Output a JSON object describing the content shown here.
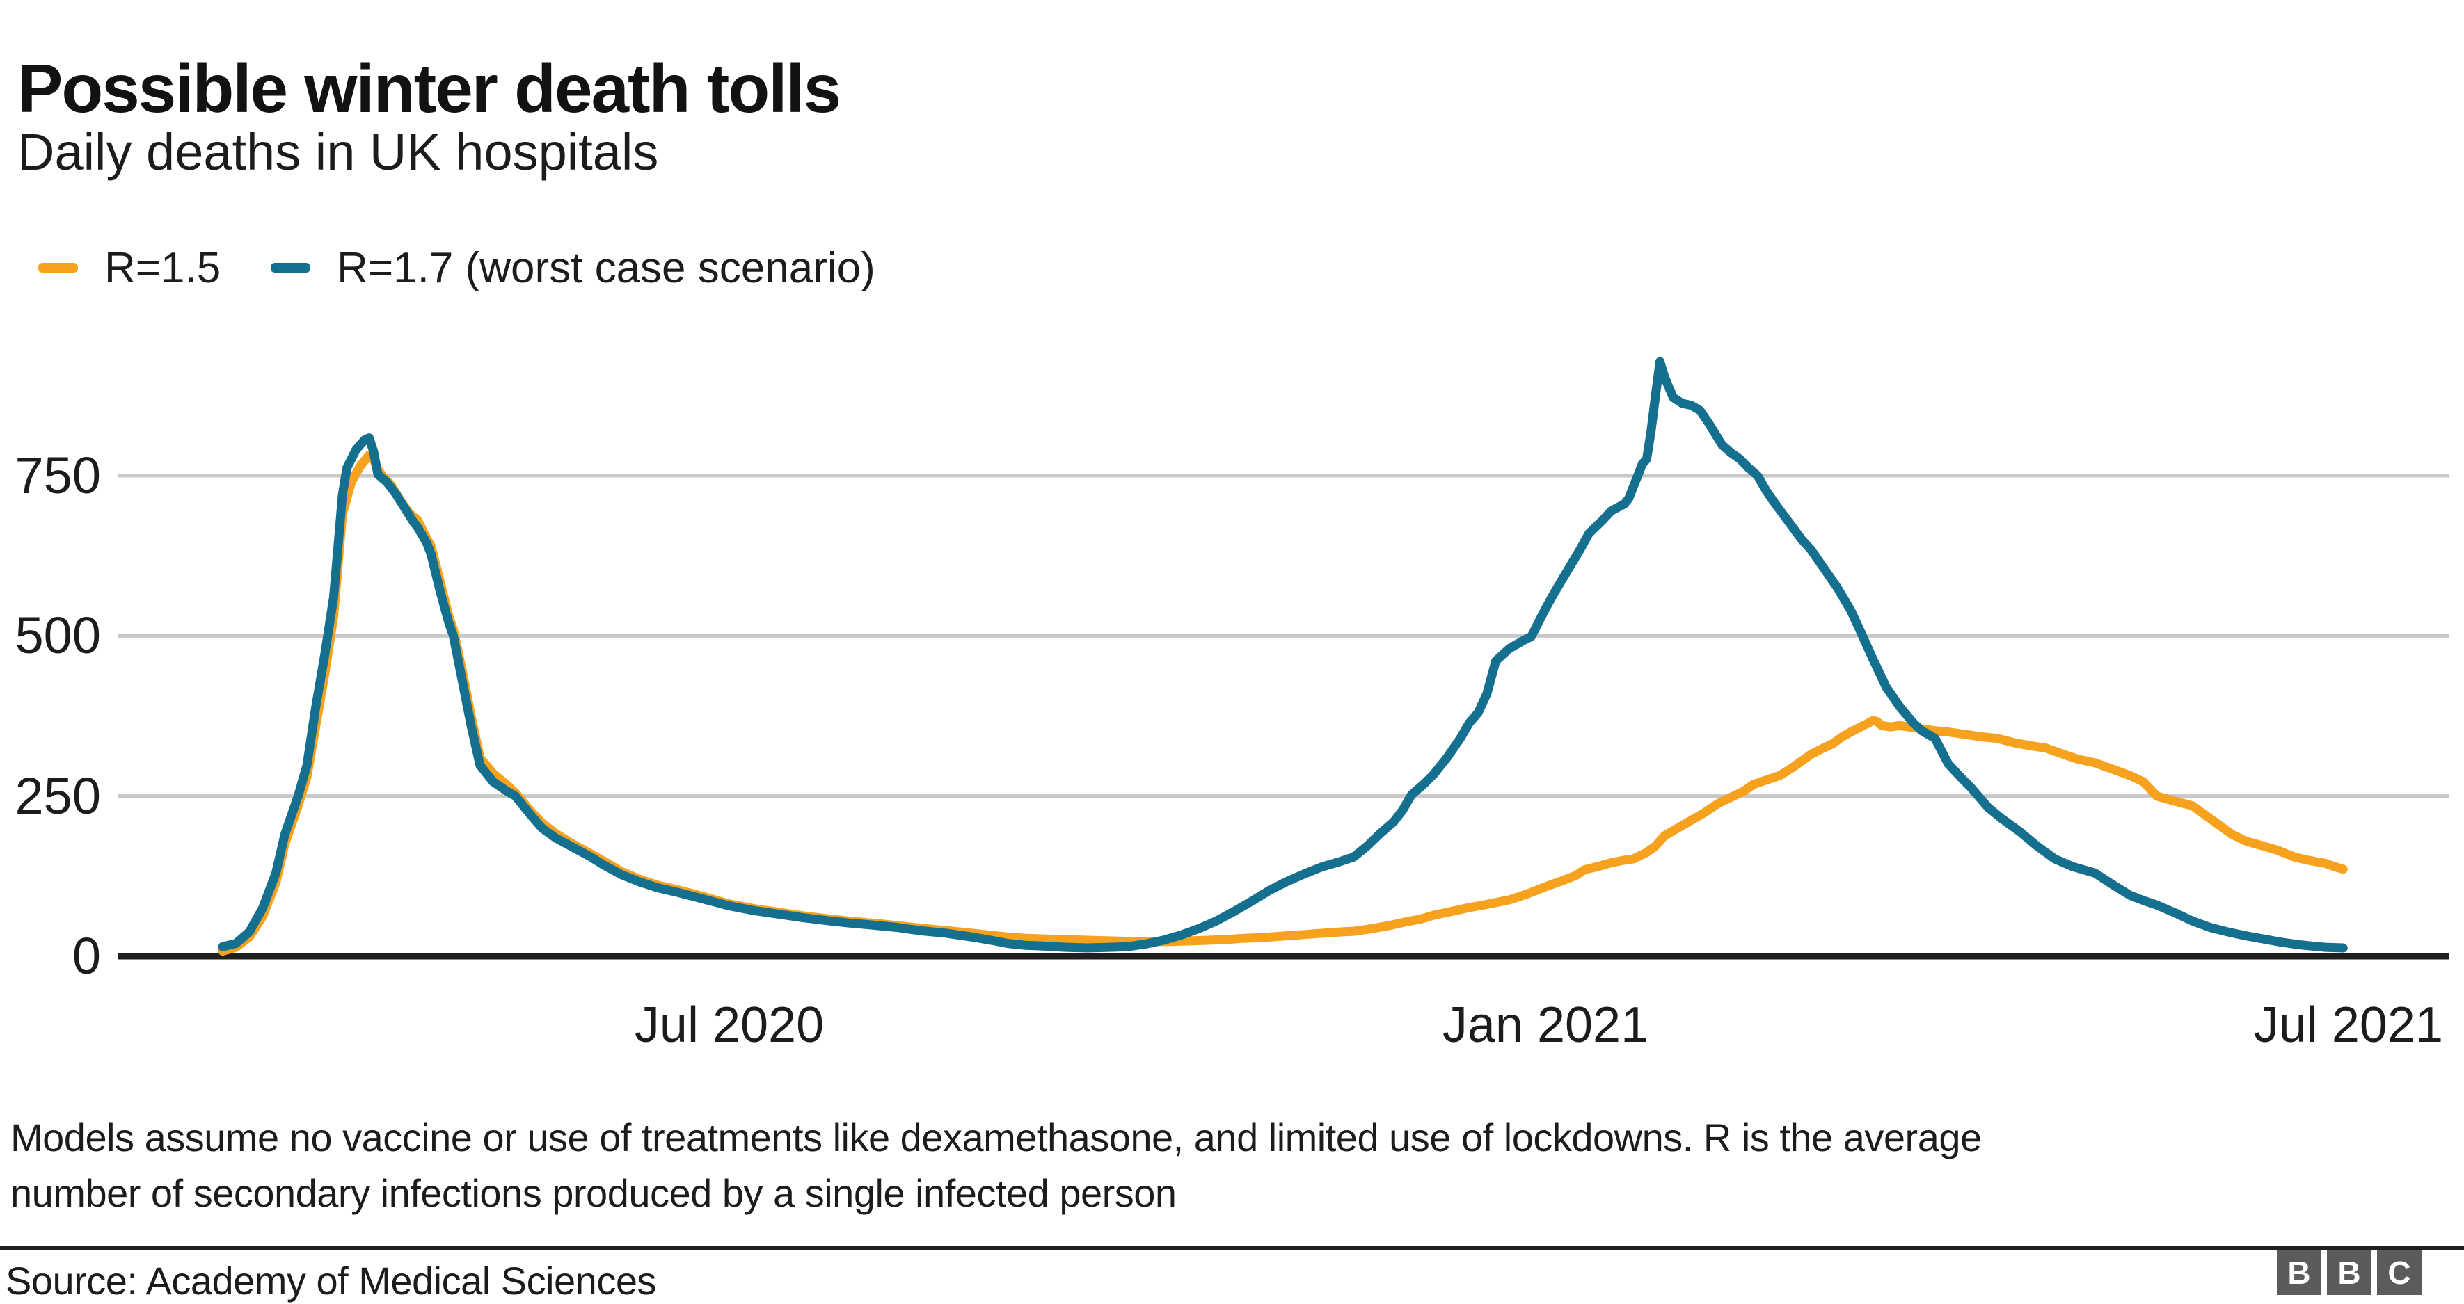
{
  "header": {
    "title": "Possible winter death tolls",
    "subtitle": "Daily deaths in UK hospitals"
  },
  "legend": {
    "items": [
      {
        "label": "R=1.5",
        "color": "#F7A21E"
      },
      {
        "label": "R=1.7 (worst case scenario)",
        "color": "#15708F"
      }
    ]
  },
  "theme": {
    "orange": "#F7A21E",
    "blue": "#15708F",
    "grid_color": "#C8C8C8",
    "axis_color": "#1F1F1F",
    "logo_block_color": "#5B5B5E",
    "text_color": "#1C1C1C"
  },
  "chart_data": {
    "type": "line",
    "title": "Possible winter death tolls",
    "subtitle": "Daily deaths in UK hospitals",
    "xlabel": "",
    "ylabel": "",
    "grid": "horizontal gridlines only",
    "legend_position": "top-left",
    "x_unit": "days (day 0 = start of data, early March 2020)",
    "xlim_days": [
      0,
      478
    ],
    "ylim": [
      0,
      960
    ],
    "y_ticks": [
      0,
      250,
      500,
      750
    ],
    "x_ticks": [
      {
        "label": "Jul 2020",
        "day": 114.2
      },
      {
        "label": "Jan 2021",
        "day": 298.2
      },
      {
        "label": "Jul 2021",
        "day": 479.2
      }
    ],
    "series": [
      {
        "name": "R=1.5",
        "color": "#F7A21E",
        "points": [
          [
            0,
            8
          ],
          [
            3,
            14
          ],
          [
            6,
            30
          ],
          [
            9,
            62
          ],
          [
            12,
            115
          ],
          [
            14,
            175
          ],
          [
            17,
            235
          ],
          [
            19,
            280
          ],
          [
            21,
            360
          ],
          [
            23,
            440
          ],
          [
            25,
            530
          ],
          [
            26,
            610
          ],
          [
            27,
            690
          ],
          [
            29,
            740
          ],
          [
            31,
            765
          ],
          [
            33,
            782
          ],
          [
            34,
            775
          ],
          [
            35,
            760
          ],
          [
            36,
            750
          ],
          [
            38,
            735
          ],
          [
            40,
            712
          ],
          [
            42,
            692
          ],
          [
            44,
            680
          ],
          [
            46,
            652
          ],
          [
            47,
            640
          ],
          [
            49,
            585
          ],
          [
            51,
            530
          ],
          [
            52,
            510
          ],
          [
            54,
            445
          ],
          [
            56,
            375
          ],
          [
            58,
            310
          ],
          [
            61,
            285
          ],
          [
            64,
            268
          ],
          [
            66,
            255
          ],
          [
            69,
            230
          ],
          [
            72,
            208
          ],
          [
            75,
            192
          ],
          [
            79,
            175
          ],
          [
            83,
            160
          ],
          [
            86,
            148
          ],
          [
            90,
            132
          ],
          [
            94,
            120
          ],
          [
            98,
            111
          ],
          [
            103,
            103
          ],
          [
            108,
            94
          ],
          [
            114,
            82
          ],
          [
            120,
            74
          ],
          [
            126,
            68
          ],
          [
            131,
            63
          ],
          [
            137,
            58
          ],
          [
            141,
            55
          ],
          [
            146,
            52
          ],
          [
            152,
            48
          ],
          [
            157,
            44
          ],
          [
            163,
            40
          ],
          [
            169,
            36
          ],
          [
            174,
            32
          ],
          [
            177,
            30
          ],
          [
            181,
            28
          ],
          [
            185,
            27
          ],
          [
            190,
            26
          ],
          [
            195,
            25
          ],
          [
            200,
            24
          ],
          [
            205,
            23
          ],
          [
            210,
            23
          ],
          [
            214,
            23
          ],
          [
            218,
            24
          ],
          [
            222,
            25
          ],
          [
            226,
            26
          ],
          [
            230,
            28
          ],
          [
            234,
            29
          ],
          [
            236,
            30
          ],
          [
            240,
            32
          ],
          [
            244,
            34
          ],
          [
            248,
            36
          ],
          [
            252,
            38
          ],
          [
            255,
            39
          ],
          [
            259,
            43
          ],
          [
            263,
            48
          ],
          [
            267,
            54
          ],
          [
            270,
            58
          ],
          [
            273,
            64
          ],
          [
            277,
            70
          ],
          [
            281,
            76
          ],
          [
            285,
            81
          ],
          [
            290,
            88
          ],
          [
            294,
            97
          ],
          [
            298,
            108
          ],
          [
            302,
            118
          ],
          [
            305,
            126
          ],
          [
            307,
            135
          ],
          [
            310,
            140
          ],
          [
            313,
            146
          ],
          [
            316,
            150
          ],
          [
            318,
            152
          ],
          [
            321,
            162
          ],
          [
            323,
            172
          ],
          [
            325,
            188
          ],
          [
            328,
            200
          ],
          [
            331,
            212
          ],
          [
            334,
            224
          ],
          [
            337,
            238
          ],
          [
            340,
            248
          ],
          [
            343,
            258
          ],
          [
            345,
            268
          ],
          [
            348,
            275
          ],
          [
            351,
            282
          ],
          [
            354,
            295
          ],
          [
            356,
            305
          ],
          [
            358,
            315
          ],
          [
            360,
            322
          ],
          [
            363,
            332
          ],
          [
            365,
            342
          ],
          [
            367,
            350
          ],
          [
            369,
            357
          ],
          [
            371,
            364
          ],
          [
            372,
            368
          ],
          [
            373,
            366
          ],
          [
            374,
            360
          ],
          [
            376,
            358
          ],
          [
            378,
            360
          ],
          [
            380,
            358
          ],
          [
            383,
            355
          ],
          [
            386,
            352
          ],
          [
            389,
            350
          ],
          [
            393,
            346
          ],
          [
            397,
            342
          ],
          [
            400,
            340
          ],
          [
            404,
            333
          ],
          [
            408,
            328
          ],
          [
            411,
            325
          ],
          [
            415,
            315
          ],
          [
            418,
            308
          ],
          [
            422,
            302
          ],
          [
            426,
            292
          ],
          [
            430,
            282
          ],
          [
            433,
            272
          ],
          [
            436,
            250
          ],
          [
            440,
            242
          ],
          [
            444,
            235
          ],
          [
            448,
            215
          ],
          [
            451,
            200
          ],
          [
            453,
            190
          ],
          [
            456,
            180
          ],
          [
            460,
            172
          ],
          [
            463,
            166
          ],
          [
            467,
            155
          ],
          [
            470,
            150
          ],
          [
            474,
            145
          ],
          [
            476,
            140
          ],
          [
            478,
            136
          ]
        ]
      },
      {
        "name": "R=1.7 (worst case scenario)",
        "color": "#15708F",
        "points": [
          [
            0,
            15
          ],
          [
            3,
            20
          ],
          [
            6,
            38
          ],
          [
            9,
            75
          ],
          [
            12,
            130
          ],
          [
            14,
            190
          ],
          [
            17,
            250
          ],
          [
            19,
            298
          ],
          [
            21,
            390
          ],
          [
            23,
            470
          ],
          [
            25,
            560
          ],
          [
            26,
            640
          ],
          [
            27,
            720
          ],
          [
            28,
            762
          ],
          [
            30,
            790
          ],
          [
            32,
            806
          ],
          [
            33,
            809
          ],
          [
            34,
            788
          ],
          [
            35,
            752
          ],
          [
            37,
            740
          ],
          [
            39,
            722
          ],
          [
            41,
            700
          ],
          [
            43,
            678
          ],
          [
            44,
            669
          ],
          [
            46,
            645
          ],
          [
            47,
            627
          ],
          [
            49,
            570
          ],
          [
            51,
            520
          ],
          [
            52,
            500
          ],
          [
            54,
            430
          ],
          [
            56,
            360
          ],
          [
            58,
            298
          ],
          [
            61,
            272
          ],
          [
            64,
            258
          ],
          [
            66,
            250
          ],
          [
            69,
            224
          ],
          [
            72,
            200
          ],
          [
            75,
            185
          ],
          [
            79,
            170
          ],
          [
            83,
            155
          ],
          [
            86,
            142
          ],
          [
            90,
            127
          ],
          [
            94,
            116
          ],
          [
            98,
            107
          ],
          [
            103,
            99
          ],
          [
            108,
            90
          ],
          [
            114,
            79
          ],
          [
            120,
            71
          ],
          [
            126,
            65
          ],
          [
            131,
            60
          ],
          [
            137,
            55
          ],
          [
            141,
            52
          ],
          [
            146,
            49
          ],
          [
            152,
            45
          ],
          [
            157,
            40
          ],
          [
            163,
            36
          ],
          [
            169,
            30
          ],
          [
            174,
            24
          ],
          [
            177,
            20
          ],
          [
            181,
            17
          ],
          [
            185,
            16
          ],
          [
            190,
            14
          ],
          [
            195,
            13
          ],
          [
            200,
            14
          ],
          [
            204,
            15
          ],
          [
            208,
            19
          ],
          [
            212,
            25
          ],
          [
            216,
            33
          ],
          [
            220,
            43
          ],
          [
            224,
            55
          ],
          [
            228,
            70
          ],
          [
            232,
            86
          ],
          [
            236,
            103
          ],
          [
            240,
            117
          ],
          [
            244,
            129
          ],
          [
            248,
            140
          ],
          [
            252,
            148
          ],
          [
            255,
            155
          ],
          [
            258,
            172
          ],
          [
            261,
            192
          ],
          [
            264,
            210
          ],
          [
            266,
            228
          ],
          [
            268,
            252
          ],
          [
            271,
            270
          ],
          [
            273,
            284
          ],
          [
            276,
            310
          ],
          [
            279,
            340
          ],
          [
            281,
            364
          ],
          [
            283,
            380
          ],
          [
            285,
            410
          ],
          [
            287,
            461
          ],
          [
            290,
            480
          ],
          [
            293,
            492
          ],
          [
            295,
            499
          ],
          [
            298,
            540
          ],
          [
            300,
            565
          ],
          [
            303,
            600
          ],
          [
            306,
            635
          ],
          [
            308,
            660
          ],
          [
            311,
            680
          ],
          [
            313,
            695
          ],
          [
            316,
            706
          ],
          [
            317,
            715
          ],
          [
            318,
            733
          ],
          [
            319,
            750
          ],
          [
            320,
            768
          ],
          [
            321,
            776
          ],
          [
            322,
            820
          ],
          [
            323,
            875
          ],
          [
            324,
            928
          ],
          [
            325,
            905
          ],
          [
            326,
            888
          ],
          [
            327,
            872
          ],
          [
            329,
            863
          ],
          [
            331,
            860
          ],
          [
            333,
            852
          ],
          [
            335,
            832
          ],
          [
            338,
            798
          ],
          [
            340,
            786
          ],
          [
            342,
            776
          ],
          [
            344,
            762
          ],
          [
            346,
            750
          ],
          [
            348,
            726
          ],
          [
            350,
            706
          ],
          [
            353,
            678
          ],
          [
            356,
            650
          ],
          [
            358,
            635
          ],
          [
            361,
            605
          ],
          [
            364,
            575
          ],
          [
            367,
            540
          ],
          [
            369,
            510
          ],
          [
            372,
            464
          ],
          [
            375,
            420
          ],
          [
            378,
            390
          ],
          [
            381,
            365
          ],
          [
            383,
            352
          ],
          [
            386,
            340
          ],
          [
            389,
            300
          ],
          [
            392,
            278
          ],
          [
            394,
            264
          ],
          [
            398,
            232
          ],
          [
            401,
            215
          ],
          [
            405,
            195
          ],
          [
            409,
            172
          ],
          [
            413,
            152
          ],
          [
            417,
            140
          ],
          [
            422,
            130
          ],
          [
            426,
            112
          ],
          [
            430,
            95
          ],
          [
            433,
            87
          ],
          [
            436,
            80
          ],
          [
            440,
            68
          ],
          [
            444,
            55
          ],
          [
            448,
            45
          ],
          [
            452,
            38
          ],
          [
            456,
            32
          ],
          [
            460,
            27
          ],
          [
            464,
            22
          ],
          [
            468,
            18
          ],
          [
            471,
            16
          ],
          [
            474,
            14
          ],
          [
            478,
            13
          ]
        ]
      }
    ]
  },
  "footer": {
    "note": "Models assume no vaccine or use of treatments like dexamethasone, and limited use of lockdowns. R is the average\nnumber of secondary infections produced by a single infected person",
    "source": "Source: Academy of Medical Sciences"
  },
  "logo": {
    "letters": [
      "B",
      "B",
      "C"
    ]
  }
}
